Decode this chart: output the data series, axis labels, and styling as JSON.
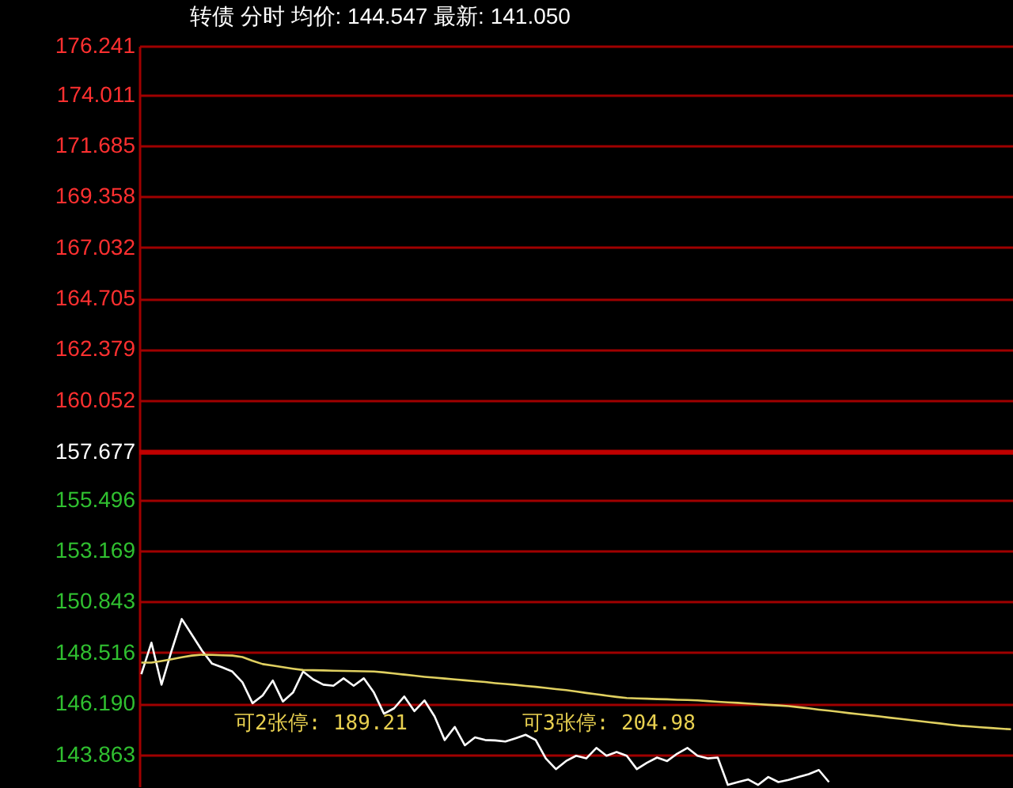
{
  "chart_data": {
    "type": "line",
    "title": "转债 分时 均价: 144.547 最新: 141.050",
    "categories": [
      null,
      null,
      null,
      null,
      null,
      null,
      null,
      null,
      null,
      null,
      null,
      null,
      null,
      null,
      null,
      null,
      null,
      null,
      null,
      null,
      null,
      null,
      null,
      null,
      null,
      null,
      null,
      null,
      null,
      null,
      null,
      null,
      null,
      null,
      null,
      null,
      null,
      null,
      null,
      null,
      null,
      null,
      null,
      null,
      null,
      null,
      null,
      null,
      null,
      null,
      null,
      null,
      null,
      null,
      null,
      null,
      null,
      null,
      null,
      null,
      null,
      null,
      null,
      null,
      null,
      null,
      null,
      null,
      null,
      null,
      null,
      null,
      null,
      null,
      null,
      null,
      null,
      null,
      null,
      null,
      null,
      null,
      null,
      null,
      null,
      null,
      null
    ],
    "ylim": [
      142.4,
      176.241
    ],
    "yticks": [
      143.863,
      {
        "value": 146.19,
        "label": "146.190"
      },
      148.516,
      150.843,
      153.169,
      155.496,
      157.677,
      160.052,
      162.379,
      164.705,
      167.032,
      169.358,
      171.685,
      174.011,
      176.241
    ],
    "grid": "y",
    "tick_labels": "y",
    "line_style": "solid",
    "ref_lines": [
      {
        "axis": "y",
        "value": 157.677,
        "color": "#c00000"
      }
    ],
    "annotations": [
      "可2张停: 189.21",
      "可3张停: 204.98"
    ],
    "series": [
      {
        "color": "#ffffff",
        "values": [
          147.53,
          148.97,
          147.05,
          148.61,
          150.05,
          149.33,
          148.61,
          148.01,
          147.84,
          147.65,
          147.16,
          146.2,
          146.56,
          147.24,
          146.28,
          146.69,
          147.65,
          147.29,
          147.05,
          147.0,
          147.34,
          147.0,
          147.34,
          146.69,
          145.72,
          145.97,
          146.51,
          145.84,
          146.33,
          145.6,
          144.52,
          145.12,
          144.28,
          144.64,
          144.52,
          144.5,
          144.45,
          144.6,
          144.76,
          144.52,
          143.68,
          143.19,
          143.56,
          143.8,
          143.68,
          144.16,
          143.8,
          143.97,
          143.8,
          143.19,
          143.48,
          143.72,
          143.56,
          143.9,
          144.16,
          143.8,
          143.68,
          143.72,
          142.47,
          142.6,
          142.72,
          142.47,
          142.83,
          142.6,
          142.7,
          142.83,
          142.96,
          143.15,
          142.6,
          null,
          null,
          null,
          null,
          null,
          null,
          null,
          null,
          null,
          null,
          null,
          null,
          null,
          null,
          null,
          null,
          null,
          null
        ]
      },
      {
        "color": "#e0d060",
        "values": [
          148.06,
          148.06,
          148.13,
          148.21,
          148.3,
          148.38,
          148.42,
          148.41,
          148.39,
          148.38,
          148.31,
          148.14,
          147.99,
          147.92,
          147.85,
          147.78,
          147.72,
          147.71,
          147.7,
          147.69,
          147.68,
          147.67,
          147.66,
          147.65,
          147.61,
          147.56,
          147.51,
          147.46,
          147.41,
          147.37,
          147.33,
          147.29,
          147.25,
          147.21,
          147.17,
          147.12,
          147.08,
          147.04,
          146.99,
          146.95,
          146.9,
          146.85,
          146.8,
          146.74,
          146.67,
          146.61,
          146.55,
          146.49,
          146.44,
          146.42,
          146.41,
          146.39,
          146.38,
          146.36,
          146.35,
          146.33,
          146.3,
          146.27,
          146.24,
          146.22,
          146.19,
          146.16,
          146.13,
          146.1,
          146.07,
          146.02,
          145.97,
          145.91,
          145.86,
          145.81,
          145.75,
          145.7,
          145.65,
          145.6,
          145.54,
          145.49,
          145.44,
          145.38,
          145.33,
          145.28,
          145.22,
          145.17,
          145.14,
          145.1,
          145.07,
          145.04,
          145.01
        ]
      }
    ]
  }
}
